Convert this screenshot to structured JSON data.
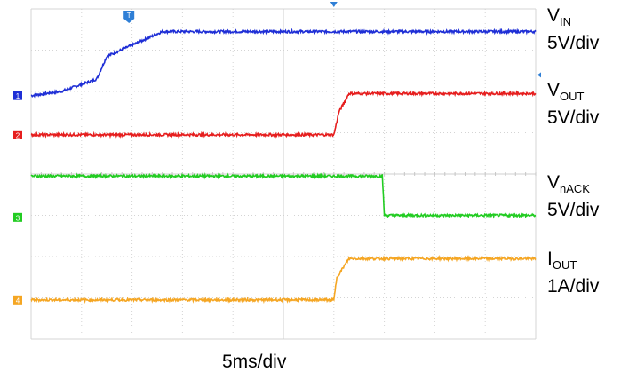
{
  "chart_data": {
    "type": "line",
    "xlabel": "5ms/div",
    "x_unit": "ms",
    "x_per_div_ms": 5,
    "divisions": {
      "x": 10,
      "y": 8
    },
    "x_range_ms": [
      0,
      50
    ],
    "grid": true,
    "series": [
      {
        "name_main": "V",
        "name_sub": "IN",
        "scale": "5V/div",
        "color": "#1f2fd6",
        "marker": "1",
        "marker_div": 5.9,
        "x": [
          0,
          3.0,
          6.5,
          7.5,
          13.0,
          50
        ],
        "y_div": [
          5.9,
          6.0,
          6.3,
          6.85,
          7.45,
          7.45
        ]
      },
      {
        "name_main": "V",
        "name_sub": "OUT",
        "scale": "5V/div",
        "color": "#e61e1e",
        "marker": "2",
        "marker_div": 4.95,
        "x": [
          0,
          30.0,
          30.5,
          31.5,
          50
        ],
        "y_div": [
          4.95,
          4.95,
          5.5,
          5.95,
          5.95
        ]
      },
      {
        "name_main": "V",
        "name_sub": "nACK",
        "scale": "5V/div",
        "color": "#22cc22",
        "marker": "3",
        "marker_div": 2.95,
        "x": [
          0,
          34.8,
          35.0,
          50
        ],
        "y_div": [
          3.95,
          3.95,
          3.0,
          3.0
        ]
      },
      {
        "name_main": "I",
        "name_sub": "OUT",
        "scale": "1A/div",
        "color": "#f5a623",
        "marker": "4",
        "marker_div": 0.95,
        "x": [
          0,
          30.0,
          30.3,
          31.5,
          50
        ],
        "y_div": [
          0.95,
          0.95,
          1.5,
          1.95,
          1.95
        ]
      }
    ],
    "trigger_marker_color": "#2f7fd6"
  }
}
